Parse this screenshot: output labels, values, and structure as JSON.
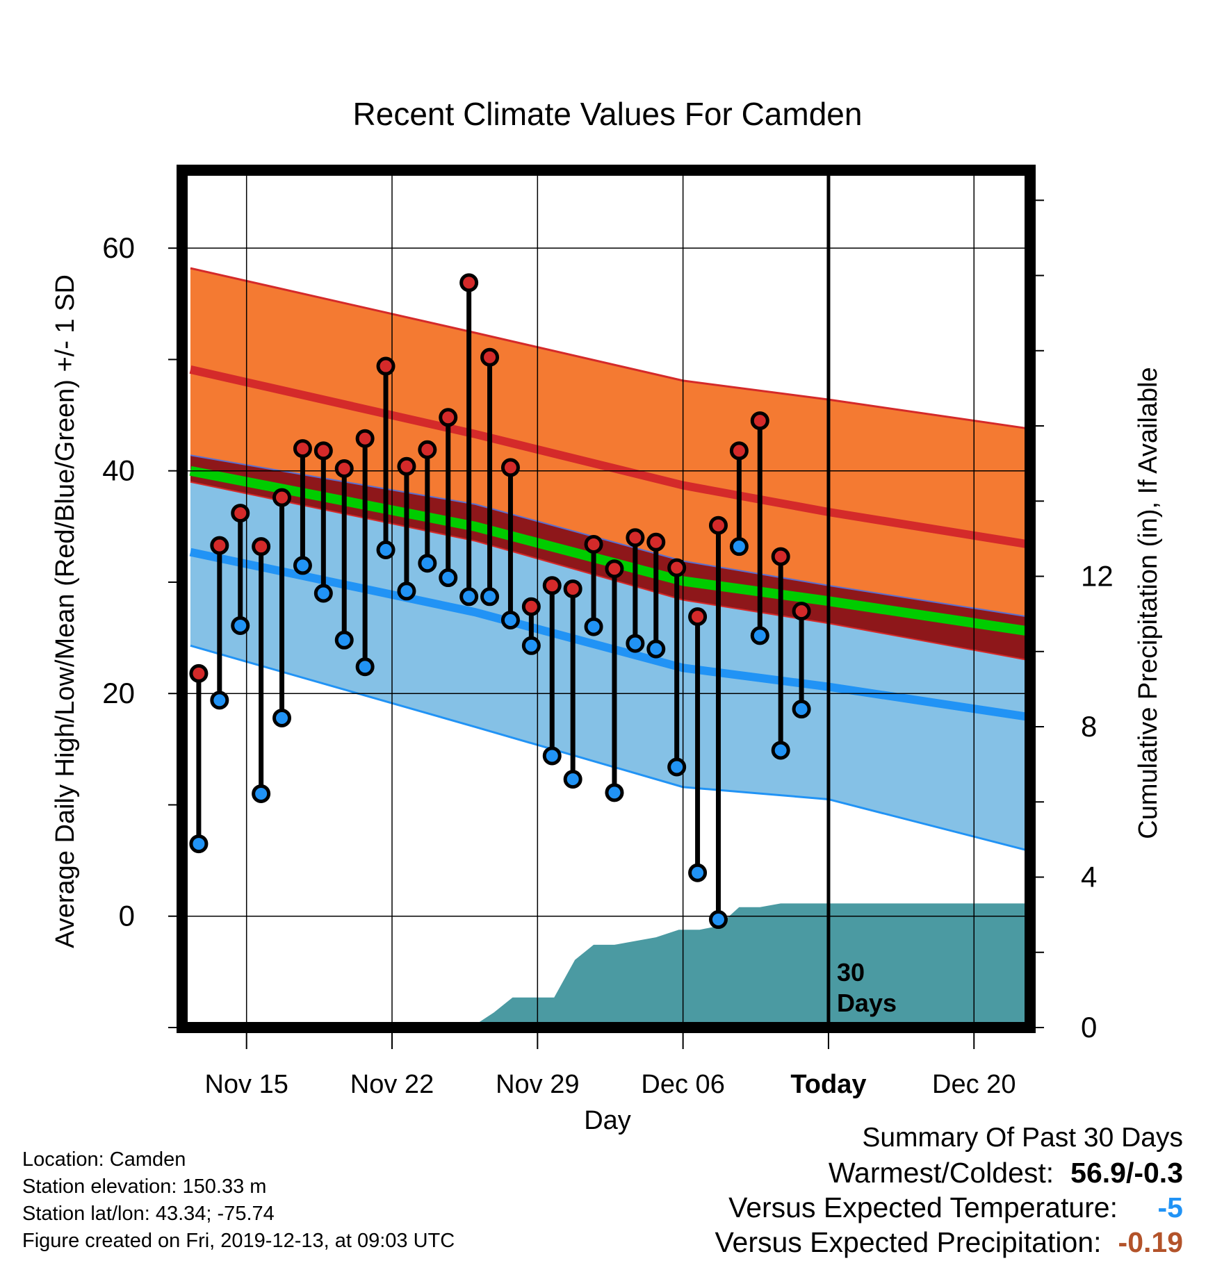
{
  "chart_data": {
    "type": "line",
    "title": "Recent Climate Values For Camden",
    "xlabel": "Day",
    "ylabel": "Average Daily High/Low/Mean (Red/Blue/Green) +/- 1 SD",
    "y2label": "Cumulative Precipitation (in), If Available",
    "x_ticks": [
      "Nov 15",
      "Nov 22",
      "Nov 29",
      "Dec 06",
      "Today",
      "Dec 20"
    ],
    "x_tick_days": [
      15,
      22,
      29,
      36,
      43,
      50
    ],
    "xlim": [
      11.9,
      52.7
    ],
    "ylim": [
      -10,
      67
    ],
    "y_ticks": [
      0,
      20,
      40,
      60
    ],
    "y2lim": [
      0,
      22.8
    ],
    "y2_ticks": [
      0,
      4,
      8,
      12
    ],
    "grid": true,
    "today_day": 43,
    "today_label": "30\nDays",
    "normals": {
      "days": [
        12.3,
        26,
        36,
        43,
        52.6
      ],
      "high_mean": [
        49.1,
        43.3,
        38.7,
        36.3,
        33.4
      ],
      "high_upper": [
        58.2,
        52.4,
        48.1,
        46.4,
        43.8
      ],
      "high_lower": [
        41.4,
        37.0,
        31.9,
        29.7,
        26.9
      ],
      "low_mean": [
        32.7,
        27.3,
        22.3,
        20.6,
        17.9
      ],
      "low_upper": [
        39.0,
        33.7,
        28.4,
        26.3,
        23.0
      ],
      "low_lower": [
        24.3,
        17.0,
        11.6,
        10.5,
        5.9
      ],
      "mean": [
        40.0,
        35.0,
        30.1,
        28.3,
        25.6
      ]
    },
    "observed": {
      "days": [
        12.7,
        13.7,
        14.7,
        15.7,
        16.7,
        17.7,
        18.7,
        19.7,
        20.7,
        21.7,
        22.7,
        23.7,
        24.7,
        25.7,
        26.7,
        27.7,
        28.7,
        29.7,
        30.7,
        31.7,
        32.7,
        33.7,
        34.7,
        35.7,
        36.7,
        37.7,
        38.7,
        39.7,
        40.7
      ],
      "high": [
        21.8,
        33.3,
        36.2,
        33.2,
        37.6,
        42.0,
        41.8,
        40.2,
        42.9,
        49.4,
        40.4,
        41.9,
        44.8,
        56.9,
        50.2,
        40.3,
        27.8,
        29.7,
        29.4,
        33.4,
        31.2,
        34.0,
        33.6,
        31.3,
        26.9,
        35.1,
        41.8,
        44.5,
        32.3
      ],
      "low": [
        6.5,
        19.4,
        26.1,
        11.0,
        17.8,
        31.5,
        29.0,
        24.8,
        22.4,
        32.9,
        29.2,
        31.7,
        30.4,
        28.7,
        28.7,
        26.6,
        24.3,
        14.4,
        12.3,
        26.0,
        11.1,
        24.5,
        24.0,
        13.4,
        3.9,
        -0.3,
        33.2,
        25.2,
        14.9
      ]
    },
    "extra_point": {
      "day": 41.7,
      "high": 27.4,
      "low": 18.6
    },
    "precipitation": {
      "days": [
        25.8,
        26.9,
        27.8,
        28.8,
        29.8,
        30.8,
        31.7,
        32.7,
        33.7,
        34.7,
        35.8,
        36.8,
        37.7,
        38.7,
        39.7,
        40.7,
        41.7,
        52.6
      ],
      "cumulative": [
        0.0,
        0.4,
        0.8,
        0.8,
        0.8,
        1.8,
        2.2,
        2.2,
        2.3,
        2.4,
        2.6,
        2.6,
        2.7,
        3.2,
        3.2,
        3.3,
        3.3,
        3.3
      ]
    },
    "colors": {
      "high_band": "#f47a32",
      "high_line": "#d42a2a",
      "overlap": "#8e171a",
      "mean_line": "#00cc00",
      "low_band": "#85c1e6",
      "low_line": "#2193f5",
      "precip": "#4b9aa2",
      "high_point": "#d42a2a",
      "low_point": "#2193f5"
    }
  },
  "footer": {
    "location": "Location: Camden",
    "elevation": "Station elevation: 150.33 m",
    "latlon": "Station lat/lon: 43.34; -75.74",
    "created": "Figure created on Fri, 2019-12-13, at 09:03 UTC"
  },
  "summary": {
    "title": "Summary Of Past 30 Days",
    "warmest_label": "Warmest/Coldest:",
    "warmest_value": "56.9/-0.3",
    "temp_label": "Versus Expected Temperature:",
    "temp_value": "-5",
    "temp_color": "#2193f5",
    "precip_label": "Versus Expected Precipitation:",
    "precip_value": "-0.19",
    "precip_color": "#b3532a"
  }
}
